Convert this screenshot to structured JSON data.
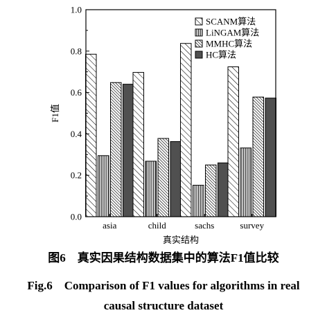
{
  "chart_data": {
    "type": "bar",
    "categories": [
      "asia",
      "child",
      "sachs",
      "survey"
    ],
    "series": [
      {
        "name": "SCANM算法",
        "values": [
          0.785,
          0.697,
          0.837,
          0.724
        ],
        "pattern": "diag-wide"
      },
      {
        "name": "LiNGAM算法",
        "values": [
          0.295,
          0.268,
          0.152,
          0.332
        ],
        "pattern": "vert-dense"
      },
      {
        "name": "MMHC算法",
        "values": [
          0.648,
          0.378,
          0.25,
          0.578
        ],
        "pattern": "diag-dense"
      },
      {
        "name": "HC算法",
        "values": [
          0.64,
          0.363,
          0.26,
          0.573
        ],
        "pattern": "solid-dark"
      }
    ],
    "xlabel": "真实结构",
    "ylabel": "F1值",
    "ylim": [
      0,
      1.0
    ],
    "yticks": [
      "0.0",
      "0.2",
      "0.4",
      "0.6",
      "0.8",
      "1.0"
    ],
    "legend_position": "top-right",
    "grid": false
  },
  "captions": {
    "cn": "图6　真实因果结构数据集中的算法F1值比较",
    "en_line1": "Fig.6　Comparison of F1 values for algorithms in real",
    "en_line2": "causal structure dataset"
  },
  "colors": {
    "bar_stroke": "#000000",
    "hc_fill": "#505050",
    "background": "#ffffff"
  }
}
